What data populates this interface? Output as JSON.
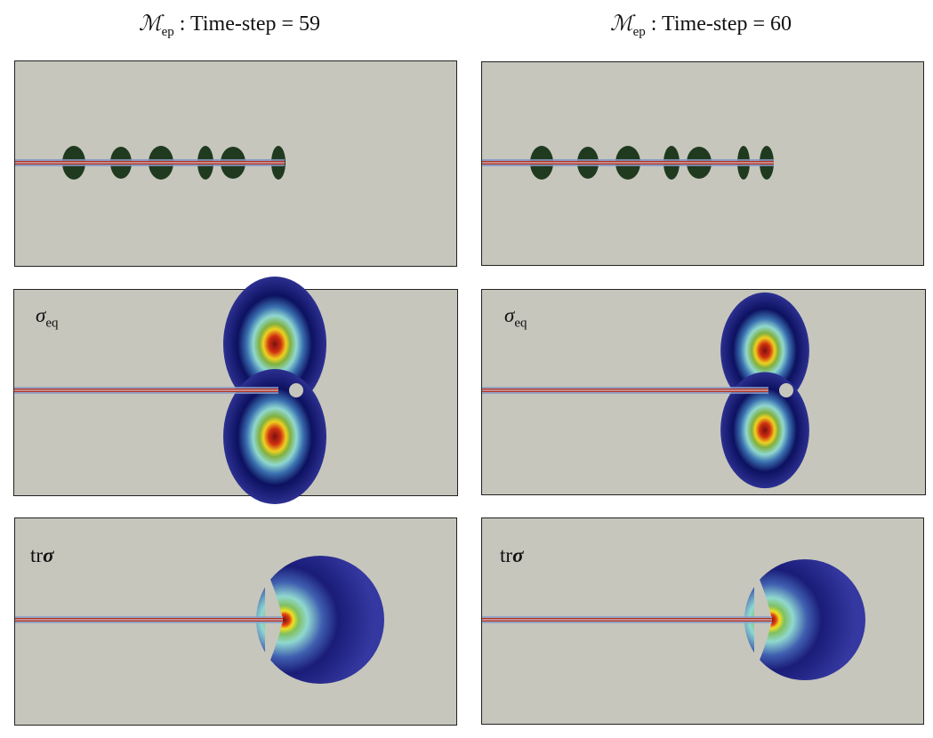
{
  "columns": [
    {
      "symbol": "ℳ",
      "subscript": "ep",
      "text": " :  Time-step = 59"
    },
    {
      "symbol": "ℳ",
      "subscript": "ep",
      "text": " :  Time-step = 60"
    }
  ],
  "row_labels": {
    "sigma_eq": {
      "symbol": "σ",
      "subscript": "eq"
    },
    "trace_sigma": {
      "prefix": "tr",
      "symbol": "σ"
    }
  },
  "colors": {
    "background": "#c6c6bd",
    "damage_blob": "#1f3a1f",
    "colormap": [
      "#2b2f8f",
      "#0d1160",
      "#4a8fc0",
      "#8fd8d0",
      "#f0e020",
      "#e05010",
      "#7a1010"
    ]
  }
}
